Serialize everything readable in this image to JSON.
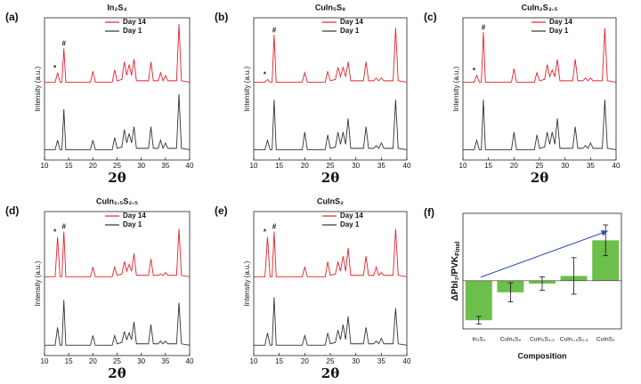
{
  "chart_data": [
    {
      "type": "line",
      "panel_label": "(a)",
      "title": "In₂S₄",
      "xlabel": "2θ",
      "ylabel": "Intensity (a.u.)",
      "xlim": [
        10,
        40
      ],
      "xticks": [
        10,
        15,
        20,
        25,
        30,
        35,
        40
      ],
      "ylim": [
        0,
        100
      ],
      "annotations": [
        "*",
        "#"
      ],
      "x": [
        10,
        12.2,
        12.7,
        13.2,
        13.6,
        14.0,
        14.4,
        19.5,
        20.0,
        20.5,
        24.0,
        24.5,
        25.0,
        26.0,
        26.5,
        27.0,
        27.5,
        28.0,
        28.5,
        29.0,
        31.5,
        32.0,
        32.5,
        33.5,
        34.0,
        34.5,
        35.0,
        35.5,
        37.3,
        37.8,
        38.3,
        40
      ],
      "series": [
        {
          "name": "Day 14",
          "color": "#e8202a",
          "values": [
            55,
            55,
            62,
            55,
            55,
            80,
            55,
            55,
            63,
            55,
            55,
            64,
            56,
            57,
            70,
            60,
            68,
            60,
            72,
            56,
            56,
            70,
            56,
            56,
            62,
            56,
            60,
            56,
            56,
            98,
            56,
            55
          ]
        },
        {
          "name": "Day 1",
          "color": "#333333",
          "values": [
            5,
            5,
            12,
            5,
            5,
            35,
            5,
            5,
            12,
            5,
            5,
            14,
            6,
            7,
            20,
            10,
            17,
            10,
            22,
            6,
            6,
            22,
            6,
            6,
            12,
            6,
            10,
            6,
            6,
            46,
            6,
            5
          ]
        }
      ]
    },
    {
      "type": "line",
      "panel_label": "(b)",
      "title": "CuIn₅S₈",
      "xlabel": "2θ",
      "ylabel": "Intensity (a.u.)",
      "xlim": [
        10,
        40
      ],
      "xticks": [
        10,
        15,
        20,
        25,
        30,
        35,
        40
      ],
      "ylim": [
        0,
        100
      ],
      "annotations": [
        "*",
        "#"
      ],
      "x": [
        10,
        12.2,
        12.7,
        13.2,
        13.6,
        14.0,
        14.4,
        19.5,
        20.0,
        20.5,
        24.0,
        24.5,
        25.0,
        26.0,
        26.5,
        27.0,
        27.5,
        28.0,
        28.5,
        29.0,
        31.5,
        32.0,
        32.5,
        33.5,
        34.0,
        34.5,
        35.0,
        35.5,
        37.3,
        37.8,
        38.3,
        40
      ],
      "series": [
        {
          "name": "Day 14",
          "color": "#e8202a",
          "values": [
            55,
            55,
            57,
            55,
            55,
            90,
            55,
            55,
            62,
            55,
            55,
            63,
            56,
            57,
            66,
            59,
            66,
            59,
            70,
            56,
            56,
            70,
            56,
            56,
            58,
            56,
            58,
            56,
            56,
            95,
            56,
            55
          ]
        },
        {
          "name": "Day 1",
          "color": "#333333",
          "values": [
            5,
            5,
            12,
            5,
            5,
            42,
            5,
            5,
            18,
            5,
            5,
            16,
            6,
            7,
            18,
            9,
            18,
            9,
            28,
            6,
            6,
            22,
            6,
            6,
            8,
            6,
            10,
            6,
            6,
            42,
            6,
            5
          ]
        }
      ]
    },
    {
      "type": "line",
      "panel_label": "(c)",
      "title": "CuIn₂S₃.₅",
      "xlabel": "2θ",
      "ylabel": "Intensity (a.u.)",
      "xlim": [
        10,
        40
      ],
      "xticks": [
        10,
        15,
        20,
        25,
        30,
        35,
        40
      ],
      "ylim": [
        0,
        100
      ],
      "annotations": [
        "*",
        "#"
      ],
      "x": [
        10,
        12.2,
        12.7,
        13.2,
        13.6,
        14.0,
        14.4,
        19.5,
        20.0,
        20.5,
        24.0,
        24.5,
        25.0,
        26.0,
        26.5,
        27.0,
        27.5,
        28.0,
        28.5,
        29.0,
        31.5,
        32.0,
        32.5,
        33.5,
        34.0,
        34.5,
        35.0,
        35.5,
        37.3,
        37.8,
        38.3,
        40
      ],
      "series": [
        {
          "name": "Day 14",
          "color": "#e8202a",
          "values": [
            55,
            55,
            60,
            55,
            55,
            92,
            55,
            55,
            65,
            55,
            55,
            62,
            56,
            57,
            68,
            59,
            64,
            59,
            72,
            56,
            56,
            72,
            56,
            56,
            58,
            56,
            58,
            56,
            56,
            95,
            56,
            55
          ]
        },
        {
          "name": "Day 1",
          "color": "#333333",
          "values": [
            5,
            5,
            12,
            5,
            5,
            42,
            5,
            5,
            18,
            5,
            5,
            16,
            6,
            7,
            18,
            9,
            18,
            9,
            28,
            6,
            6,
            22,
            6,
            6,
            8,
            6,
            10,
            6,
            6,
            42,
            6,
            5
          ]
        }
      ]
    },
    {
      "type": "line",
      "panel_label": "(d)",
      "title": "CuIn₁.₅S₂.₅",
      "xlabel": "2θ",
      "ylabel": "Intensity (a.u.)",
      "xlim": [
        10,
        40
      ],
      "xticks": [
        10,
        15,
        20,
        25,
        30,
        35,
        40
      ],
      "ylim": [
        0,
        100
      ],
      "annotations": [
        "*",
        "#"
      ],
      "x": [
        10,
        12.2,
        12.7,
        13.2,
        13.6,
        14.0,
        14.4,
        19.5,
        20.0,
        20.5,
        24.0,
        24.5,
        25.0,
        26.0,
        26.5,
        27.0,
        27.5,
        28.0,
        28.5,
        29.0,
        31.5,
        32.0,
        32.5,
        33.5,
        34.0,
        34.5,
        35.0,
        35.5,
        37.3,
        37.8,
        38.3,
        40
      ],
      "series": [
        {
          "name": "Day 14",
          "color": "#e8202a",
          "values": [
            55,
            55,
            84,
            55,
            55,
            88,
            55,
            55,
            62,
            55,
            55,
            62,
            56,
            57,
            66,
            59,
            64,
            59,
            72,
            56,
            56,
            68,
            56,
            56,
            57,
            56,
            58,
            56,
            56,
            90,
            56,
            55
          ]
        },
        {
          "name": "Day 1",
          "color": "#333333",
          "values": [
            5,
            5,
            18,
            5,
            5,
            38,
            5,
            5,
            12,
            5,
            5,
            12,
            6,
            7,
            15,
            9,
            14,
            9,
            22,
            6,
            6,
            20,
            6,
            6,
            8,
            6,
            8,
            6,
            6,
            36,
            6,
            5
          ]
        }
      ]
    },
    {
      "type": "line",
      "panel_label": "(e)",
      "title": "CuInS₂",
      "xlabel": "2θ",
      "ylabel": "Intensity (a.u.)",
      "xlim": [
        10,
        40
      ],
      "xticks": [
        10,
        15,
        20,
        25,
        30,
        35,
        40
      ],
      "ylim": [
        0,
        100
      ],
      "annotations": [
        "*",
        "#"
      ],
      "x": [
        10,
        12.2,
        12.7,
        13.2,
        13.6,
        14.0,
        14.4,
        19.5,
        20.0,
        20.5,
        24.0,
        24.5,
        25.0,
        26.0,
        26.5,
        27.0,
        27.5,
        28.0,
        28.5,
        29.0,
        31.5,
        32.0,
        32.5,
        33.5,
        34.0,
        34.5,
        35.0,
        35.5,
        37.3,
        37.8,
        38.3,
        40
      ],
      "series": [
        {
          "name": "Day 14",
          "color": "#e8202a",
          "values": [
            55,
            55,
            84,
            55,
            55,
            88,
            55,
            55,
            62,
            55,
            55,
            66,
            56,
            57,
            66,
            59,
            70,
            59,
            76,
            56,
            56,
            70,
            56,
            56,
            62,
            56,
            58,
            56,
            56,
            90,
            56,
            55
          ]
        },
        {
          "name": "Day 1",
          "color": "#333333",
          "values": [
            5,
            5,
            14,
            5,
            5,
            40,
            5,
            5,
            12,
            5,
            5,
            14,
            6,
            7,
            16,
            9,
            20,
            9,
            26,
            6,
            6,
            18,
            6,
            6,
            8,
            6,
            10,
            6,
            6,
            32,
            6,
            5
          ]
        }
      ]
    },
    {
      "type": "bar",
      "panel_label": "(f)",
      "xlabel": "Composition",
      "ylabel": "ΔPbI₂/PVK",
      "ylabel_sub": "Final",
      "categories": [
        "In₂S₄",
        "CuIn₅S₈",
        "CuIn₂S₃.₅",
        "CuIn₁.₅S₂.₅",
        "CuInS₂"
      ],
      "values": [
        -0.41,
        -0.12,
        -0.03,
        0.05,
        0.42
      ],
      "errors": [
        0.04,
        0.1,
        0.07,
        0.19,
        0.16
      ],
      "color": "#6cbf4a",
      "ylim": [
        -0.5,
        0.7
      ]
    }
  ]
}
